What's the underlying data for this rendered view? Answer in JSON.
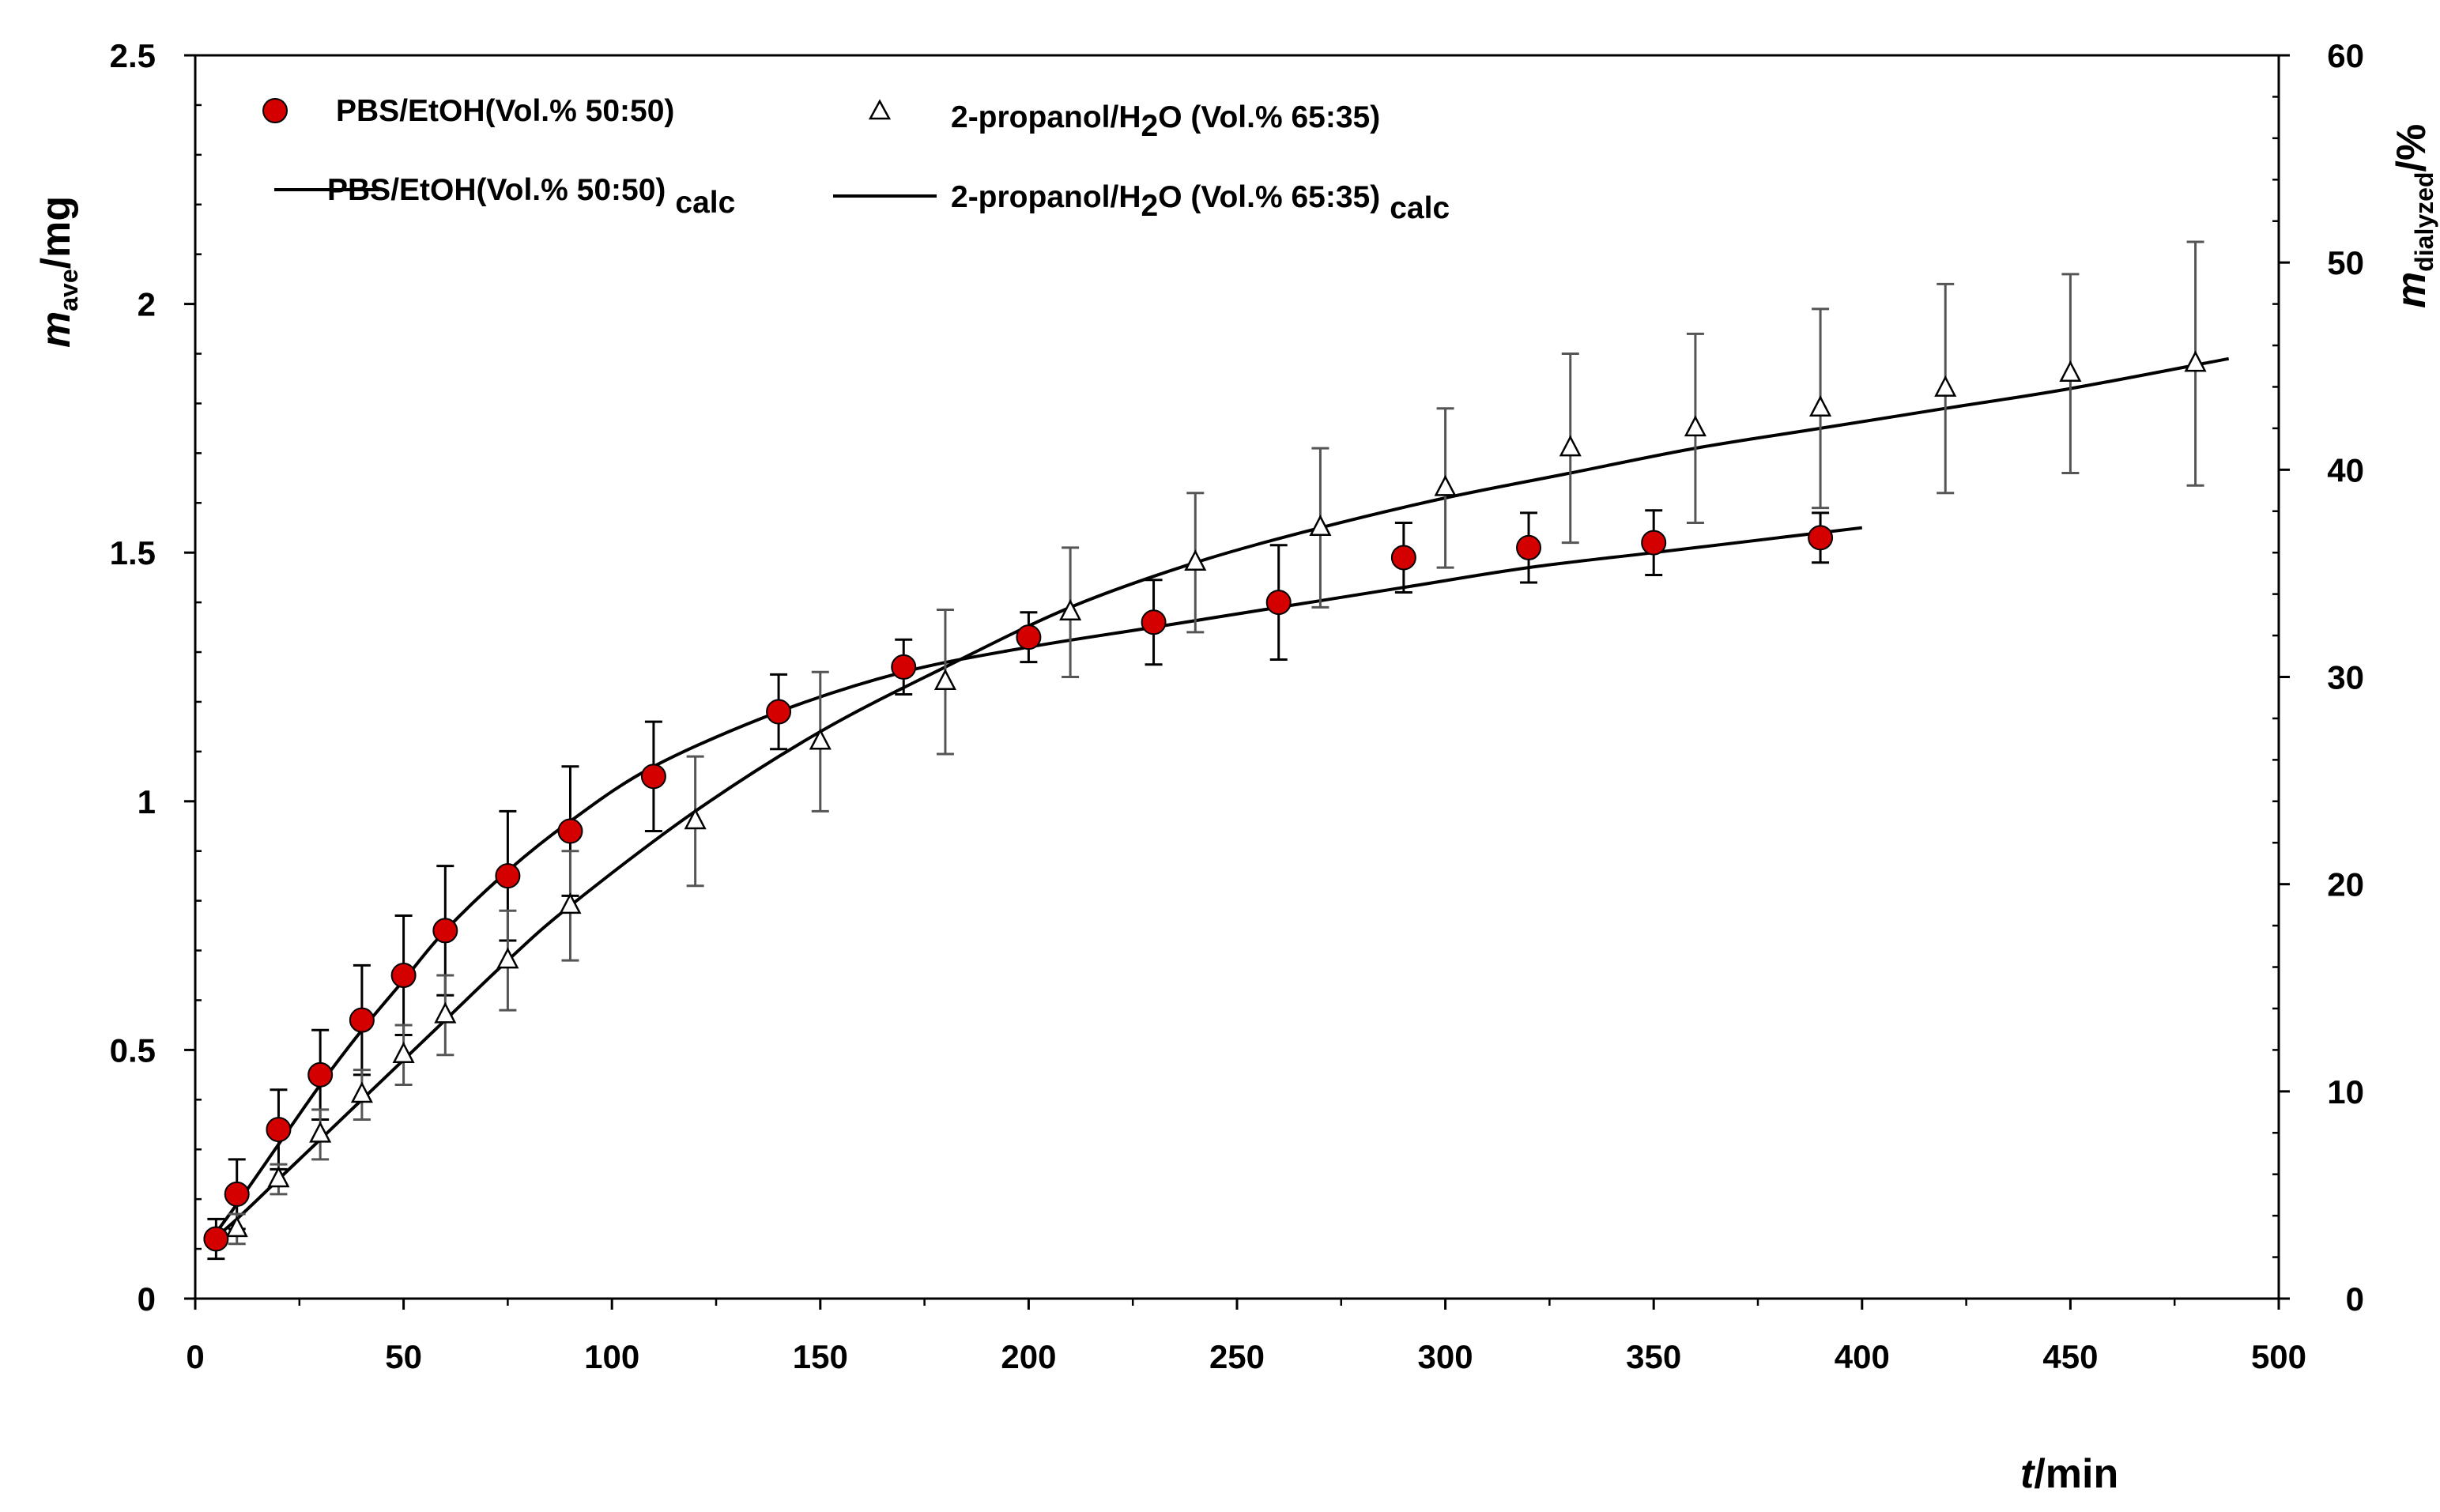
{
  "chart_data": {
    "type": "scatter",
    "xlabel": {
      "var": "t",
      "unit": "/min"
    },
    "ylabel_left": {
      "var": "m",
      "sub": "ave",
      "unit": "/mg"
    },
    "ylabel_right": {
      "var": "m",
      "sub": "dialyzed",
      "unit": "/%"
    },
    "xlim": [
      0,
      500
    ],
    "ylim_left": [
      0,
      2.5
    ],
    "ylim_right": [
      0,
      60
    ],
    "xticks": [
      0,
      50,
      100,
      150,
      200,
      250,
      300,
      350,
      400,
      450,
      500
    ],
    "xtick_labels": [
      "0",
      "50",
      "100",
      "150",
      "200",
      "250",
      "300",
      "350",
      "400",
      "450",
      "500"
    ],
    "yticks_left": [
      0,
      0.5,
      1,
      1.5,
      2,
      2.5
    ],
    "ytick_labels_left": [
      "0",
      "0.5",
      "1",
      "1.5",
      "2",
      "2.5"
    ],
    "yticks_right": [
      0,
      10,
      20,
      30,
      40,
      50,
      60
    ],
    "ytick_labels_right": [
      "0",
      "10",
      "20",
      "30",
      "40",
      "50",
      "60"
    ],
    "grid": false,
    "legend_position": "top-left",
    "legend": {
      "series1": "PBS/EtOH(Vol.% 50:50)",
      "series2_pre": "2-propanol/H",
      "series2_sub": "2",
      "series2_post": "O (Vol.% 65:35)",
      "line1": "PBS/EtOH(Vol.% 50:50)",
      "line1_sub": "calc",
      "line2_pre": "2-propanol/H",
      "line2_sub": "2",
      "line2_post": "O (Vol.% 65:35)",
      "line2_calc": "calc"
    },
    "series": [
      {
        "name": "PBS/EtOH(Vol.% 50:50)",
        "marker": "circle",
        "color": "#d40000",
        "x": [
          5,
          10,
          20,
          30,
          40,
          50,
          60,
          75,
          90,
          110,
          140,
          170,
          200,
          230,
          260,
          290,
          320,
          350,
          390
        ],
        "y": [
          0.12,
          0.21,
          0.34,
          0.45,
          0.56,
          0.65,
          0.74,
          0.85,
          0.94,
          1.05,
          1.18,
          1.27,
          1.33,
          1.36,
          1.4,
          1.49,
          1.51,
          1.52,
          1.53
        ],
        "err": [
          0.04,
          0.07,
          0.08,
          0.09,
          0.11,
          0.12,
          0.13,
          0.13,
          0.13,
          0.11,
          0.075,
          0.055,
          0.05,
          0.085,
          0.115,
          0.07,
          0.07,
          0.065,
          0.05
        ]
      },
      {
        "name": "2-propanol/H2O (Vol.% 65:35)",
        "marker": "triangle",
        "color": "#000000",
        "x": [
          10,
          20,
          30,
          40,
          50,
          60,
          75,
          90,
          120,
          150,
          180,
          210,
          240,
          270,
          300,
          330,
          360,
          390,
          420,
          450,
          480
        ],
        "y": [
          0.14,
          0.24,
          0.33,
          0.41,
          0.49,
          0.57,
          0.68,
          0.79,
          0.96,
          1.12,
          1.24,
          1.38,
          1.48,
          1.55,
          1.63,
          1.71,
          1.75,
          1.79,
          1.83,
          1.86,
          1.88
        ],
        "err": [
          0.03,
          0.03,
          0.05,
          0.05,
          0.06,
          0.08,
          0.1,
          0.11,
          0.13,
          0.14,
          0.145,
          0.13,
          0.14,
          0.16,
          0.16,
          0.19,
          0.19,
          0.2,
          0.21,
          0.2,
          0.245
        ]
      }
    ],
    "fit_lines": [
      {
        "name": "PBS/EtOH(Vol.% 50:50) calc",
        "x": [
          3,
          10,
          20,
          30,
          40,
          50,
          60,
          75,
          90,
          110,
          140,
          170,
          200,
          230,
          260,
          290,
          320,
          350,
          380,
          400
        ],
        "y": [
          0.11,
          0.19,
          0.31,
          0.43,
          0.54,
          0.64,
          0.74,
          0.86,
          0.96,
          1.07,
          1.18,
          1.26,
          1.31,
          1.35,
          1.39,
          1.43,
          1.47,
          1.5,
          1.53,
          1.55
        ]
      },
      {
        "name": "2-propanol/H2O (Vol.% 65:35) calc",
        "x": [
          3,
          10,
          20,
          30,
          40,
          50,
          60,
          75,
          90,
          120,
          150,
          180,
          210,
          240,
          270,
          300,
          330,
          360,
          390,
          420,
          450,
          488
        ],
        "y": [
          0.11,
          0.16,
          0.24,
          0.32,
          0.4,
          0.48,
          0.56,
          0.68,
          0.79,
          0.98,
          1.14,
          1.27,
          1.39,
          1.48,
          1.55,
          1.61,
          1.66,
          1.71,
          1.75,
          1.79,
          1.83,
          1.89
        ]
      }
    ]
  }
}
